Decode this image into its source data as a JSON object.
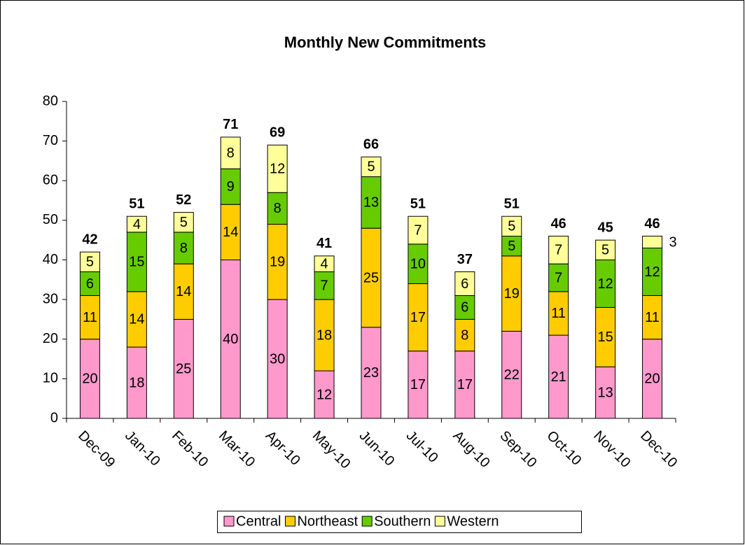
{
  "chart_data": {
    "type": "stacked_bar",
    "title": "Monthly New Commitments",
    "categories": [
      "Dec-09",
      "Jan-10",
      "Feb-10",
      "Mar-10",
      "Apr-10",
      "May-10",
      "Jun-10",
      "Jul-10",
      "Aug-10",
      "Sep-10",
      "Oct-10",
      "Nov-10",
      "Dec-10"
    ],
    "series": [
      {
        "name": "Central",
        "color": "#ff99cc",
        "values": [
          20,
          18,
          25,
          40,
          30,
          12,
          23,
          17,
          17,
          22,
          21,
          13,
          20
        ]
      },
      {
        "name": "Northeast",
        "color": "#ffcc00",
        "values": [
          11,
          14,
          14,
          14,
          19,
          18,
          25,
          17,
          8,
          19,
          11,
          15,
          11
        ]
      },
      {
        "name": "Southern",
        "color": "#66cc00",
        "values": [
          6,
          15,
          8,
          9,
          8,
          7,
          13,
          10,
          6,
          5,
          7,
          12,
          12
        ]
      },
      {
        "name": "Western",
        "color": "#ffff99",
        "values": [
          5,
          4,
          5,
          8,
          12,
          4,
          5,
          7,
          6,
          5,
          7,
          5,
          3
        ]
      }
    ],
    "totals": [
      42,
      51,
      52,
      71,
      69,
      41,
      66,
      51,
      37,
      51,
      46,
      45,
      46
    ],
    "ylim": [
      0,
      80
    ],
    "yticks": [
      0,
      10,
      20,
      30,
      40,
      50,
      60,
      70,
      80
    ],
    "grid": false,
    "legend": "bottom"
  }
}
